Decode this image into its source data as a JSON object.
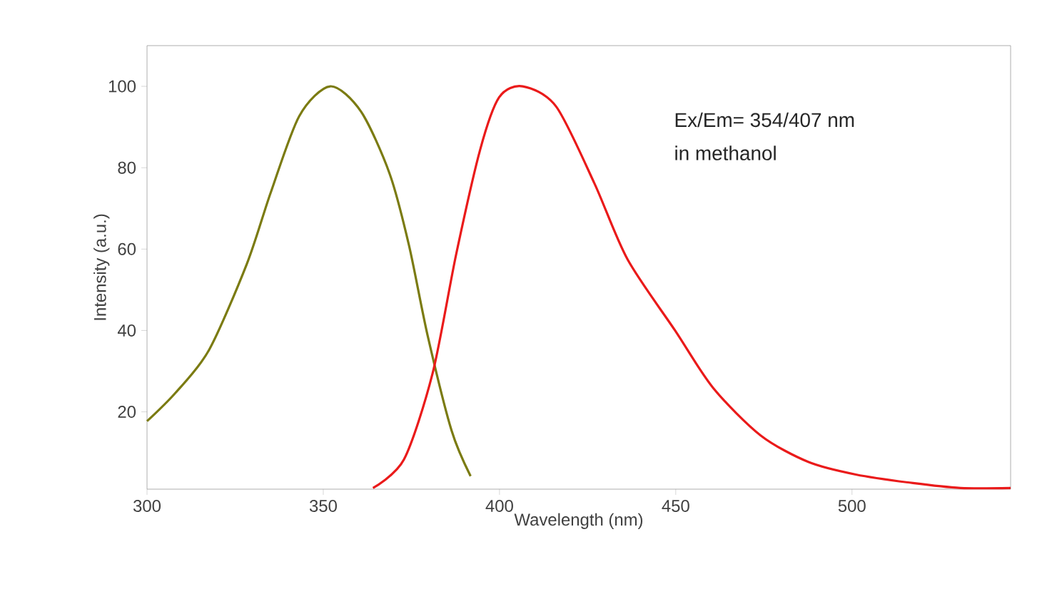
{
  "chart_data": {
    "type": "line",
    "xlabel": "Wavelength (nm)",
    "ylabel": "Intensity (a.u.)",
    "annotations": [
      "Ex/Em= 354/407 nm",
      "in methanol"
    ],
    "xlim": [
      300,
      545
    ],
    "ylim": [
      1,
      110
    ],
    "xticks": [
      300,
      350,
      400,
      450,
      500
    ],
    "yticks": [
      20,
      40,
      60,
      80,
      100
    ],
    "marker": "none",
    "line_style": "solid",
    "series": [
      {
        "color": "#7b7b12",
        "x": [
          300,
          308.1,
          317.6,
          328.3,
          335.1,
          343.2,
          352,
          360.7,
          368.8,
          374.3,
          379.6,
          386.4,
          391.8
        ],
        "values": [
          17.7,
          24.7,
          35.2,
          56.3,
          73.9,
          92.7,
          100,
          93.8,
          78.6,
          61,
          38.8,
          15.4,
          4.2
        ]
      },
      {
        "color": "#ea1a1a",
        "x": [
          364.1,
          372.9,
          381,
          387.7,
          394.5,
          399.9,
          406.6,
          416.1,
          426.9,
          436.3,
          449.8,
          460.6,
          474.1,
          487.6,
          501.1,
          517.3,
          530.8,
          545
        ],
        "values": [
          1.3,
          8.3,
          29.4,
          58.7,
          84.4,
          97.3,
          100,
          95,
          76.2,
          57.5,
          40,
          25.9,
          14.2,
          7.7,
          4.6,
          2.5,
          1.3,
          1.3
        ]
      }
    ]
  }
}
